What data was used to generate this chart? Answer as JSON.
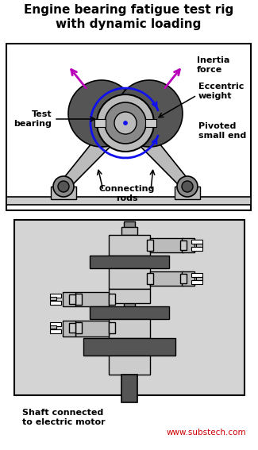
{
  "title": "Engine bearing fatigue test rig\nwith dynamic loading",
  "label_test_bearing": "Test\nbearing",
  "label_inertia": "Inertia\nforce",
  "label_eccentric": "Eccentric\nweight",
  "label_pivoted": "Pivoted\nsmall end",
  "label_connecting": "Connecting\nrods",
  "label_shaft": "Shaft connected\nto electric motor",
  "label_website": "www.substech.com",
  "bg_color": "#ffffff",
  "lower_panel_bg": "#d4d4d4",
  "dark_gray": "#555555",
  "mid_gray": "#888888",
  "light_gray": "#bbbbbb",
  "very_light_gray": "#cccccc",
  "panel_light": "#c8c8c8",
  "white": "#ffffff",
  "blue": "#1111ee",
  "purple": "#bb00bb",
  "black": "#000000",
  "red": "#cc0000",
  "upper_border": "#000000"
}
